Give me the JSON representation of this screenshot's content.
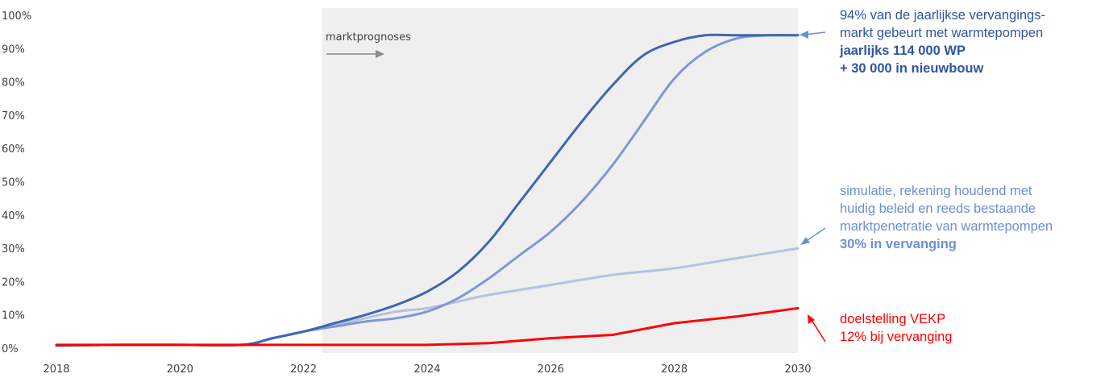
{
  "chart_data": {
    "type": "line",
    "x_ticks": [
      "2018",
      "2020",
      "2022",
      "2024",
      "2026",
      "2028",
      "2030"
    ],
    "y_ticks": [
      "0%",
      "10%",
      "20%",
      "30%",
      "40%",
      "50%",
      "60%",
      "70%",
      "80%",
      "90%",
      "100%"
    ],
    "xlim": [
      2018,
      2030
    ],
    "ylim": [
      0,
      100
    ],
    "shaded_region": {
      "label": "marktprognoses",
      "x_from": 2022.3,
      "x_to": 2030
    },
    "series": [
      {
        "color": "#4166b0",
        "x": [
          2018,
          2019,
          2020,
          2021,
          2021.5,
          2022,
          2022.5,
          2023,
          2023.5,
          2024,
          2024.5,
          2025,
          2025.5,
          2026,
          2026.5,
          2027,
          2027.5,
          2028,
          2028.5,
          2029,
          2029.5,
          2030
        ],
        "y": [
          0.8,
          1,
          1,
          1,
          3,
          5,
          7.5,
          10,
          13,
          17,
          23,
          32,
          44,
          56,
          68,
          79,
          88,
          92,
          94,
          94,
          94,
          94
        ]
      },
      {
        "color": "#7f98d2",
        "x": [
          2018,
          2019,
          2020,
          2021,
          2021.5,
          2022,
          2022.5,
          2023,
          2023.5,
          2024,
          2024.5,
          2025,
          2025.5,
          2026,
          2026.5,
          2027,
          2027.5,
          2028,
          2028.5,
          2029,
          2029.5,
          2030
        ],
        "y": [
          0.8,
          1,
          1,
          1,
          3,
          5,
          6.5,
          8,
          9,
          11,
          15,
          21,
          28,
          35,
          44,
          55,
          68,
          81,
          89,
          93,
          94,
          94
        ]
      },
      {
        "color": "#b4c2e3",
        "x": [
          2018,
          2019,
          2020,
          2021,
          2021.5,
          2022,
          2022.5,
          2023,
          2023.5,
          2024,
          2024.5,
          2025,
          2026,
          2027,
          2028,
          2029,
          2030
        ],
        "y": [
          0.8,
          1,
          1,
          1,
          3,
          5,
          7,
          9,
          11,
          12,
          14,
          16,
          19,
          22,
          24,
          27,
          30
        ]
      },
      {
        "color": "#ff0000",
        "x": [
          2018,
          2019,
          2020,
          2021,
          2022,
          2023,
          2024,
          2025,
          2026,
          2027,
          2028,
          2029,
          2030
        ],
        "y": [
          1,
          1,
          1,
          1,
          1,
          1,
          1,
          1.5,
          3,
          4,
          7.5,
          9.5,
          12
        ]
      }
    ]
  },
  "annotations": {
    "a1": {
      "color": "#2f54a3",
      "lines": [
        {
          "text": "94% van de jaarlijkse vervangings-",
          "bold": false
        },
        {
          "text": "markt gebeurt met warmtepompen",
          "bold": false
        },
        {
          "text": "jaarlijks 114 000 WP",
          "bold": true
        },
        {
          "text": "+ 30 000 in nieuwbouw",
          "bold": true
        }
      ]
    },
    "a2": {
      "color": "#6b8fd6",
      "lines": [
        {
          "text": "simulatie, rekening houdend met",
          "bold": false
        },
        {
          "text": "huidig beleid en reeds bestaande",
          "bold": false
        },
        {
          "text": "marktpenetratie van warmtepompen",
          "bold": false
        },
        {
          "text": "30% in vervanging",
          "bold": true
        }
      ]
    },
    "a3": {
      "color": "#ff0000",
      "lines": [
        {
          "text": "doelstelling VEKP",
          "bold": false
        },
        {
          "text": "12% bij vervanging",
          "bold": false
        }
      ]
    }
  }
}
